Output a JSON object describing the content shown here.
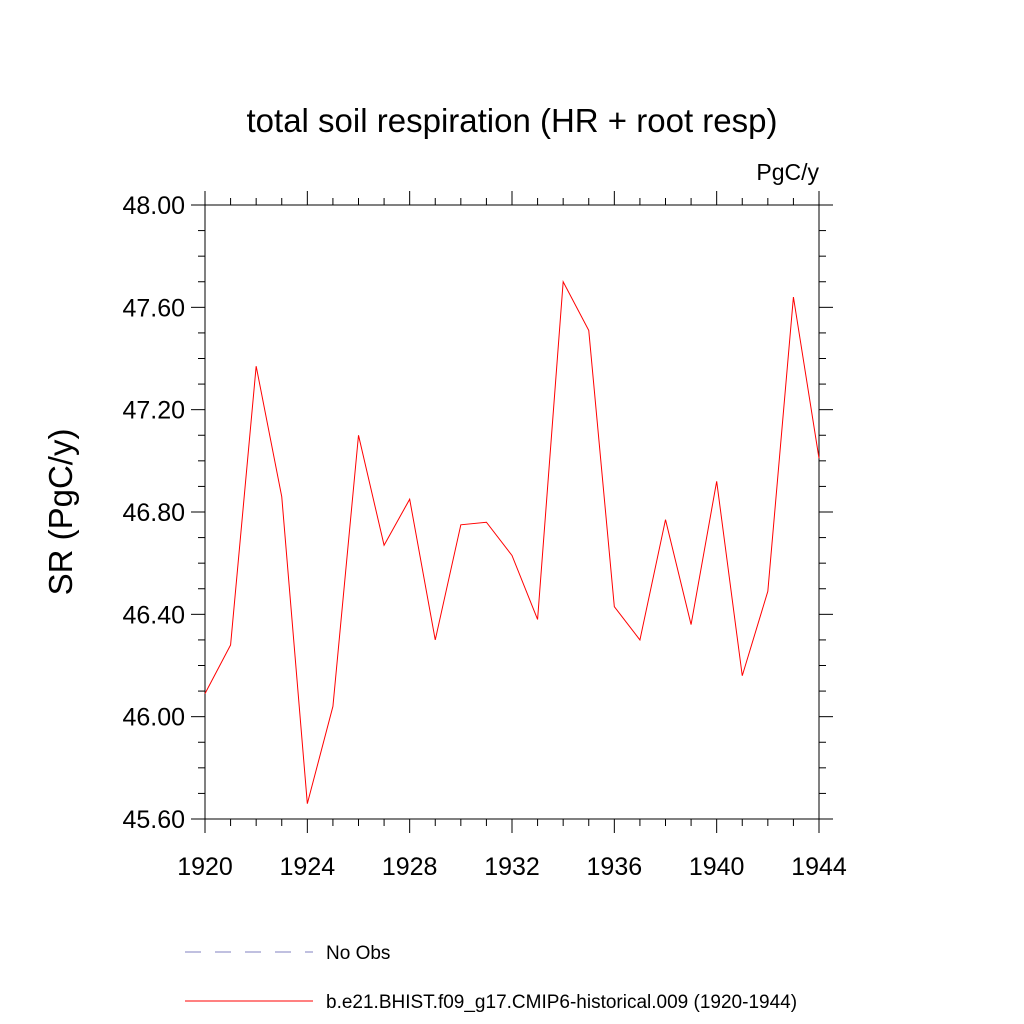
{
  "chart_data": {
    "type": "line",
    "title": "total soil respiration (HR + root resp)",
    "units_label": "PgC/y",
    "ylabel": "SR  (PgC/y)",
    "xlabel": "",
    "xlim": [
      1920,
      1944
    ],
    "ylim": [
      45.6,
      48.0
    ],
    "x_ticks": [
      1920,
      1924,
      1928,
      1932,
      1936,
      1940,
      1944
    ],
    "x_tick_labels": [
      "1920",
      "1924",
      "1928",
      "1932",
      "1936",
      "1940",
      "1944"
    ],
    "y_ticks": [
      45.6,
      46.0,
      46.4,
      46.8,
      47.2,
      47.6,
      48.0
    ],
    "y_tick_labels": [
      "45.60",
      "46.00",
      "46.40",
      "46.80",
      "47.20",
      "47.60",
      "48.00"
    ],
    "grid": false,
    "legend_placement": "bottom",
    "series": [
      {
        "name": "b.e21.BHIST.f09_g17.CMIP6-historical.009 (1920-1944)",
        "color": "#ff0000",
        "style": "solid",
        "x": [
          1920,
          1921,
          1922,
          1923,
          1924,
          1925,
          1926,
          1927,
          1928,
          1929,
          1930,
          1931,
          1932,
          1933,
          1934,
          1935,
          1936,
          1937,
          1938,
          1939,
          1940,
          1941,
          1942,
          1943,
          1944
        ],
        "y": [
          46.09,
          46.28,
          47.37,
          46.86,
          45.66,
          46.04,
          47.1,
          46.67,
          46.85,
          46.3,
          46.75,
          46.76,
          46.63,
          46.38,
          47.7,
          47.51,
          46.43,
          46.3,
          46.77,
          46.36,
          46.92,
          46.16,
          46.49,
          47.64,
          47.01
        ]
      }
    ],
    "legend": [
      {
        "label": "No Obs",
        "color": "#8080c0",
        "style": "dashed"
      },
      {
        "label": "b.e21.BHIST.f09_g17.CMIP6-historical.009 (1920-1944)",
        "color": "#ff0000",
        "style": "solid"
      }
    ]
  }
}
